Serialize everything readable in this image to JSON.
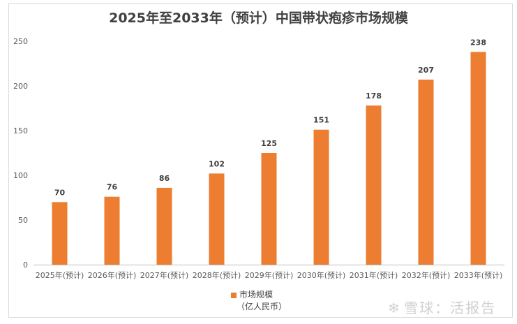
{
  "chart_data": {
    "type": "bar",
    "title": "2025年至2033年（预计）中国带状疱疹市场规模",
    "categories": [
      "2025年(预计)",
      "2026年(预计)",
      "2027年(预计)",
      "2028年(预计)",
      "2029年(预计)",
      "2030年(预计)",
      "2031年(预计)",
      "2032年(预计)",
      "2033年(预计)"
    ],
    "series": [
      {
        "name": "市场规模",
        "values": [
          70,
          76,
          86,
          102,
          125,
          151,
          178,
          207,
          238
        ]
      }
    ],
    "legend_unit": "（亿人民币）",
    "ylim": [
      0,
      250
    ],
    "yticks": [
      0,
      50,
      100,
      150,
      200,
      250
    ],
    "grid": false,
    "legend_position": "bottom",
    "bar_color": "#ed7d31"
  },
  "watermark": {
    "icon": "snowball-logo-icon",
    "text": "雪球：活报告"
  }
}
